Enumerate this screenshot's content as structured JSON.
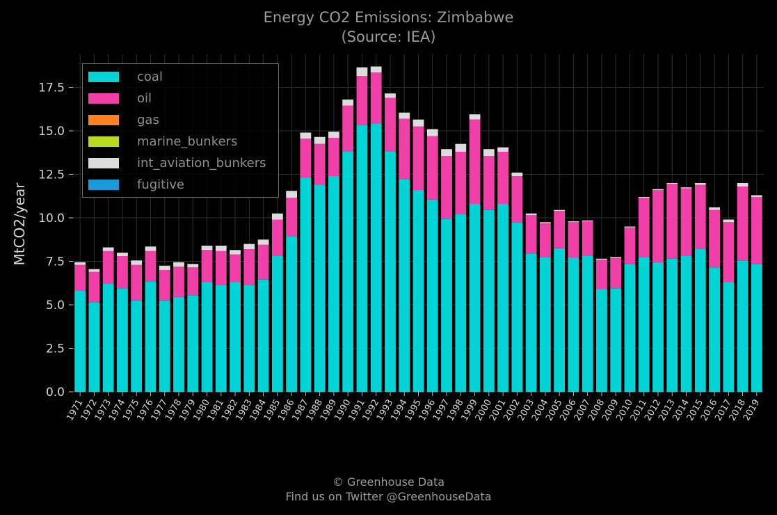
{
  "title": "Energy CO2 Emissions: Zimbabwe",
  "subtitle": "(Source: IEA)",
  "footer": {
    "line1": "© Greenhouse Data",
    "line2": "Find us on Twitter @GreenhouseData"
  },
  "chart_data": {
    "type": "bar",
    "stacked": true,
    "ylabel": "MtCO2/year",
    "xlabel": "",
    "ylim": [
      0,
      19.4
    ],
    "yticks": [
      "0.0",
      "2.5",
      "5.0",
      "7.5",
      "10.0",
      "12.5",
      "15.0",
      "17.5"
    ],
    "grid": true,
    "legend_position": "top-left",
    "categories": [
      "1971",
      "1972",
      "1973",
      "1974",
      "1975",
      "1976",
      "1977",
      "1978",
      "1979",
      "1980",
      "1981",
      "1982",
      "1983",
      "1984",
      "1985",
      "1986",
      "1987",
      "1988",
      "1989",
      "1990",
      "1991",
      "1992",
      "1993",
      "1994",
      "1995",
      "1996",
      "1997",
      "1998",
      "1999",
      "2000",
      "2001",
      "2002",
      "2003",
      "2004",
      "2005",
      "2006",
      "2007",
      "2008",
      "2009",
      "2010",
      "2011",
      "2012",
      "2013",
      "2014",
      "2015",
      "2016",
      "2017",
      "2018",
      "2019"
    ],
    "series": [
      {
        "name": "coal",
        "color": "#00d4d6",
        "values": [
          5.8,
          5.15,
          6.2,
          5.95,
          5.25,
          6.35,
          5.25,
          5.45,
          5.55,
          6.3,
          6.15,
          6.3,
          6.15,
          6.45,
          7.8,
          8.95,
          12.3,
          11.9,
          12.4,
          13.8,
          15.35,
          15.4,
          13.8,
          12.2,
          11.6,
          11.05,
          9.95,
          10.2,
          10.8,
          10.45,
          10.8,
          9.75,
          7.95,
          7.75,
          8.25,
          7.7,
          7.8,
          5.9,
          5.95,
          7.35,
          7.75,
          7.45,
          7.65,
          7.8,
          8.2,
          7.15,
          6.3,
          7.55,
          7.35
        ]
      },
      {
        "name": "oil",
        "color": "#f040a8",
        "values": [
          1.5,
          1.75,
          1.9,
          1.85,
          2.05,
          1.75,
          1.75,
          1.75,
          1.6,
          1.85,
          1.95,
          1.6,
          2.05,
          2.0,
          2.1,
          2.2,
          2.25,
          2.35,
          2.2,
          2.65,
          2.8,
          2.95,
          3.1,
          3.5,
          3.65,
          3.65,
          3.6,
          3.6,
          4.85,
          3.1,
          3.0,
          2.65,
          2.2,
          1.95,
          2.15,
          2.05,
          2.0,
          1.7,
          1.75,
          2.1,
          3.4,
          4.15,
          4.3,
          3.9,
          3.7,
          3.3,
          3.45,
          4.25,
          3.85
        ]
      },
      {
        "name": "gas",
        "color": "#ff8020",
        "values": [
          0,
          0,
          0,
          0,
          0,
          0,
          0,
          0,
          0,
          0,
          0,
          0,
          0,
          0,
          0,
          0,
          0,
          0,
          0,
          0,
          0,
          0,
          0,
          0,
          0,
          0,
          0,
          0,
          0,
          0,
          0,
          0,
          0,
          0,
          0,
          0,
          0,
          0,
          0,
          0,
          0,
          0,
          0,
          0,
          0,
          0,
          0,
          0,
          0
        ]
      },
      {
        "name": "marine_bunkers",
        "color": "#bcd820",
        "values": [
          0,
          0,
          0,
          0,
          0,
          0,
          0,
          0,
          0,
          0,
          0,
          0,
          0,
          0,
          0,
          0,
          0,
          0,
          0,
          0,
          0,
          0,
          0,
          0,
          0,
          0,
          0,
          0,
          0,
          0,
          0,
          0,
          0,
          0,
          0,
          0,
          0,
          0,
          0,
          0,
          0,
          0,
          0,
          0,
          0,
          0,
          0,
          0,
          0
        ]
      },
      {
        "name": "int_aviation_bunkers",
        "color": "#dcdcdc",
        "values": [
          0.15,
          0.15,
          0.2,
          0.2,
          0.25,
          0.25,
          0.25,
          0.25,
          0.2,
          0.25,
          0.3,
          0.25,
          0.3,
          0.3,
          0.35,
          0.4,
          0.35,
          0.4,
          0.35,
          0.35,
          0.5,
          0.35,
          0.25,
          0.35,
          0.4,
          0.4,
          0.4,
          0.45,
          0.3,
          0.4,
          0.25,
          0.2,
          0.1,
          0.05,
          0.05,
          0.05,
          0.05,
          0.05,
          0.05,
          0.05,
          0.05,
          0.05,
          0.05,
          0.05,
          0.1,
          0.15,
          0.15,
          0.2,
          0.1
        ]
      },
      {
        "name": "fugitive",
        "color": "#1a9ad8",
        "values": [
          0,
          0,
          0,
          0,
          0,
          0,
          0,
          0,
          0,
          0,
          0,
          0,
          0,
          0,
          0,
          0,
          0,
          0,
          0,
          0,
          0,
          0,
          0,
          0,
          0,
          0,
          0,
          0,
          0,
          0,
          0,
          0,
          0,
          0,
          0,
          0,
          0,
          0,
          0,
          0,
          0,
          0,
          0,
          0,
          0,
          0,
          0,
          0,
          0
        ]
      }
    ]
  }
}
